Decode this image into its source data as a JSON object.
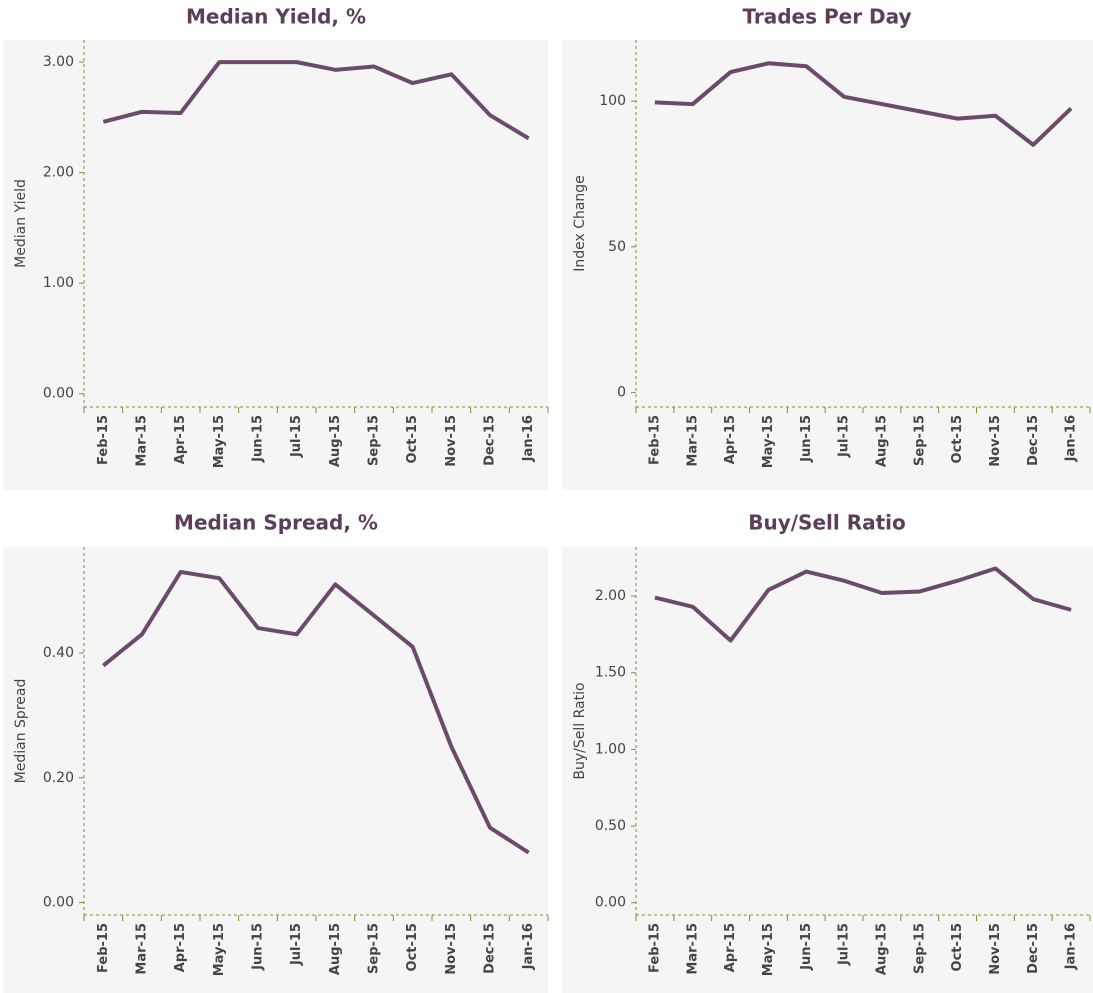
{
  "chart_data": [
    {
      "type": "line",
      "title": "Median Yield, %",
      "y_label": "Median Yield",
      "categories": [
        "Feb-15",
        "Mar-15",
        "Apr-15",
        "May-15",
        "Jun-15",
        "Jul-15",
        "Aug-15",
        "Sep-15",
        "Oct-15",
        "Nov-15",
        "Dec-15",
        "Jan-16"
      ],
      "values": [
        2.46,
        2.55,
        2.54,
        3.0,
        3.0,
        3.0,
        2.93,
        2.96,
        2.81,
        2.89,
        2.52,
        2.31
      ],
      "color": "#6b4a6b",
      "ylim": [
        -0.12,
        3.2
      ],
      "yticks": [
        {
          "value": 0,
          "label": "0.00"
        },
        {
          "value": 1,
          "label": "1.00"
        },
        {
          "value": 2,
          "label": "2.00"
        },
        {
          "value": 3,
          "label": "3.00"
        }
      ]
    },
    {
      "type": "line",
      "title": "Trades Per Day",
      "y_label": "Index Change",
      "categories": [
        "Feb-15",
        "Mar-15",
        "Apr-15",
        "May-15",
        "Jun-15",
        "Jul-15",
        "Aug-15",
        "Sep-15",
        "Oct-15",
        "Nov-15",
        "Dec-15",
        "Jan-16"
      ],
      "values": [
        99.6,
        99.0,
        110,
        113,
        112,
        101.5,
        99,
        96.5,
        94,
        95,
        85,
        97.5
      ],
      "color": "#6b4a6b",
      "ylim": [
        -5,
        121
      ],
      "yticks": [
        0,
        50,
        100
      ]
    },
    {
      "type": "line",
      "title": "Median Spread, %",
      "y_label": "Median Spread",
      "categories": [
        "Feb-15",
        "Mar-15",
        "Apr-15",
        "May-15",
        "Jun-15",
        "Jul-15",
        "Aug-15",
        "Sep-15",
        "Oct-15",
        "Nov-15",
        "Dec-15",
        "Jan-16"
      ],
      "values": [
        0.38,
        0.43,
        0.53,
        0.52,
        0.44,
        0.43,
        0.51,
        0.46,
        0.41,
        0.25,
        0.12,
        0.08
      ],
      "color": "#6b4a6b",
      "ylim": [
        -0.02,
        0.57
      ],
      "yticks": [
        {
          "value": 0,
          "label": "0.00"
        },
        {
          "value": 0.2,
          "label": "0.20"
        },
        {
          "value": 0.4,
          "label": "0.40"
        }
      ]
    },
    {
      "type": "line",
      "title": "Buy/Sell Ratio",
      "y_label": "Buy/Sell Ratio",
      "categories": [
        "Feb-15",
        "Mar-15",
        "Apr-15",
        "May-15",
        "Jun-15",
        "Jul-15",
        "Aug-15",
        "Sep-15",
        "Oct-15",
        "Nov-15",
        "Dec-15",
        "Jan-16"
      ],
      "values": [
        1.99,
        1.93,
        1.71,
        2.04,
        2.16,
        2.1,
        2.02,
        2.03,
        2.1,
        2.18,
        1.98,
        1.91
      ],
      "color": "#6b4a6b",
      "ylim": [
        -0.08,
        2.32
      ],
      "yticks": [
        {
          "value": 0,
          "label": "0.00"
        },
        {
          "value": 0.5,
          "label": "0.50"
        },
        {
          "value": 1,
          "label": "1.00"
        },
        {
          "value": 1.5,
          "label": "1.50"
        },
        {
          "value": 2,
          "label": "2.00"
        }
      ]
    }
  ]
}
